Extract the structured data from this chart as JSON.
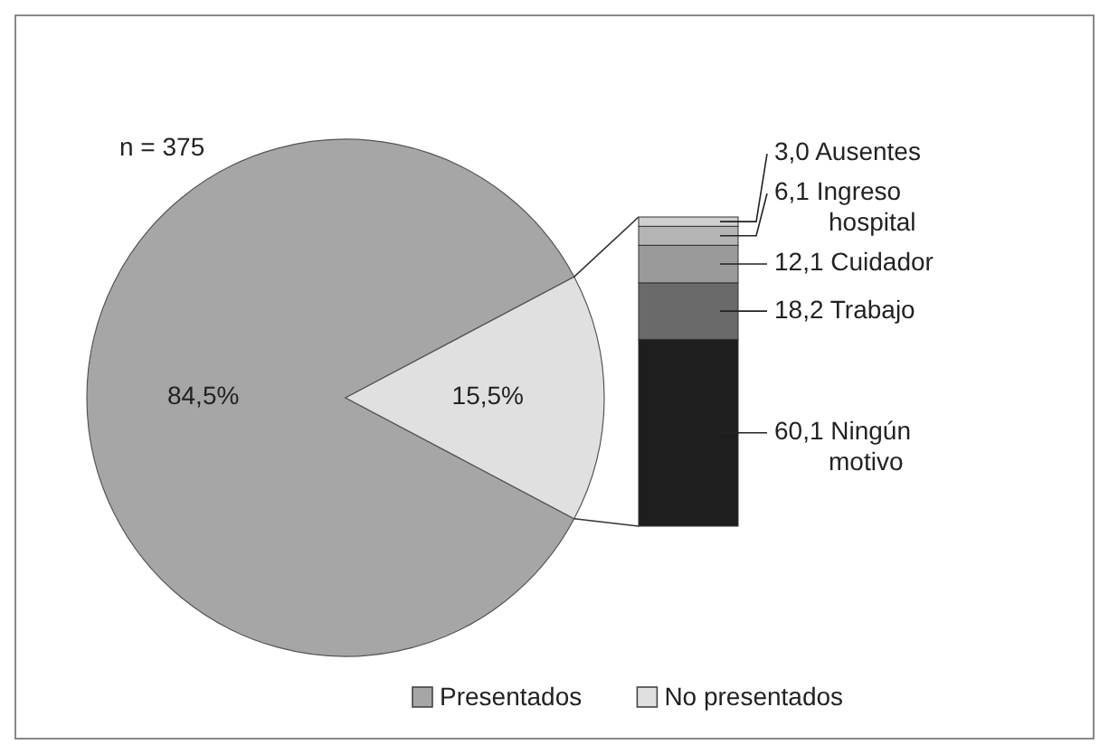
{
  "chart_data": [
    {
      "type": "pie",
      "categories": [
        "Presentados",
        "No presentados"
      ],
      "values": [
        84.5,
        15.5
      ],
      "colors": [
        "#a6a6a6",
        "#e0e0e0"
      ],
      "value_labels": [
        "84,5%",
        "15,5%"
      ],
      "annotations": [
        "n = 375"
      ],
      "legend": "bottom"
    },
    {
      "type": "bar",
      "stacked": true,
      "categories": [
        null
      ],
      "ylim": [
        0,
        99.5
      ],
      "tick_labels": false,
      "series": [
        {
          "name": "Ningún motivo",
          "color": "#1e1e1e",
          "values": [
            60.1
          ],
          "value_labels": [
            "60,1"
          ]
        },
        {
          "name": "Trabajo",
          "color": "#6a6a6a",
          "values": [
            18.2
          ],
          "value_labels": [
            "18,2"
          ]
        },
        {
          "name": "Cuidador",
          "color": "#9a9a9a",
          "values": [
            12.1
          ],
          "value_labels": [
            "12,1"
          ]
        },
        {
          "name": "Ingreso hospital",
          "color": "#b4b4b4",
          "values": [
            6.1
          ],
          "value_labels": [
            "6,1"
          ]
        },
        {
          "name": "Ausentes",
          "color": "#d0d0d0",
          "values": [
            3.0
          ],
          "value_labels": [
            "3,0"
          ]
        }
      ]
    }
  ]
}
